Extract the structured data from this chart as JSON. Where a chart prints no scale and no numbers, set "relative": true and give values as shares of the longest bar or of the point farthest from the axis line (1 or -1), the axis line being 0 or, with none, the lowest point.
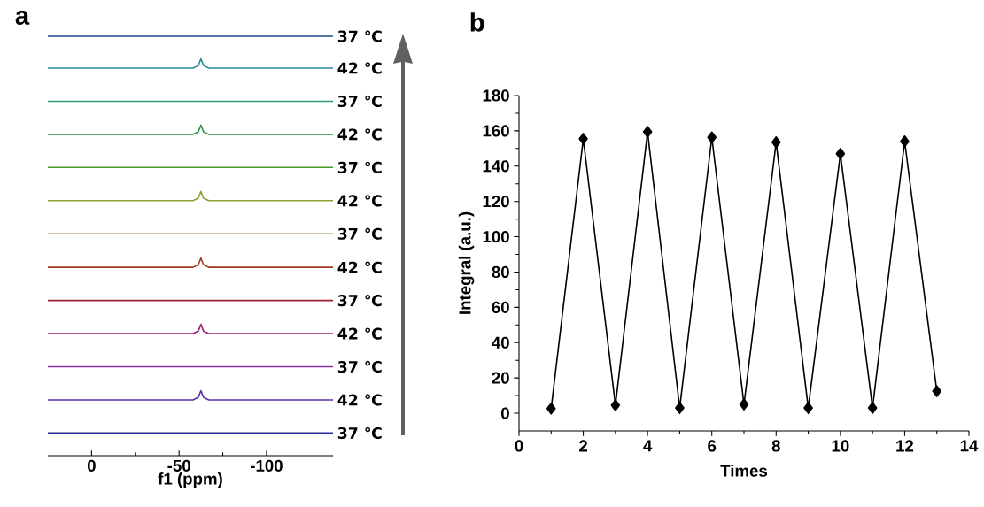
{
  "chart_data": [
    {
      "type": "line",
      "title": "a",
      "xlabel": "f1 (ppm)",
      "relative": true,
      "xlim": [
        25,
        -138
      ],
      "xticks": [
        0,
        -50,
        -100
      ],
      "marker": "none",
      "line_style": "solid",
      "series": [
        {
          "name": "37 ℃",
          "color": "#1f4e8c",
          "x": [
            25,
            -138
          ],
          "values": [
            1.0,
            1.0
          ]
        },
        {
          "name": "42 ℃",
          "color": "#2a8a9a",
          "x": [
            25,
            -58,
            -61,
            -62.5,
            -64,
            -67,
            -138
          ],
          "values": [
            0.924,
            0.924,
            0.93,
            0.946,
            0.93,
            0.924,
            0.924
          ]
        },
        {
          "name": "37 ℃",
          "color": "#2a9a7a",
          "x": [
            25,
            -138
          ],
          "values": [
            0.845,
            0.845
          ]
        },
        {
          "name": "42 ℃",
          "color": "#2a9040",
          "x": [
            25,
            -58,
            -61,
            -62.5,
            -64,
            -67,
            -138
          ],
          "values": [
            0.766,
            0.766,
            0.772,
            0.788,
            0.772,
            0.766,
            0.766
          ]
        },
        {
          "name": "37 ℃",
          "color": "#4a9a2a",
          "x": [
            25,
            -138
          ],
          "values": [
            0.687,
            0.687
          ]
        },
        {
          "name": "42 ℃",
          "color": "#8aa030",
          "x": [
            25,
            -58,
            -61,
            -62.5,
            -64,
            -67,
            -138
          ],
          "values": [
            0.608,
            0.608,
            0.614,
            0.63,
            0.614,
            0.608,
            0.608
          ]
        },
        {
          "name": "37 ℃",
          "color": "#a08a30",
          "x": [
            25,
            -138
          ],
          "values": [
            0.529,
            0.529
          ]
        },
        {
          "name": "42 ℃",
          "color": "#9a3a20",
          "x": [
            25,
            -58,
            -61,
            -62.5,
            -64,
            -67,
            -138
          ],
          "values": [
            0.449,
            0.449,
            0.455,
            0.471,
            0.455,
            0.449,
            0.449
          ]
        },
        {
          "name": "37 ℃",
          "color": "#9a2030",
          "x": [
            25,
            -138
          ],
          "values": [
            0.37,
            0.37
          ]
        },
        {
          "name": "42 ℃",
          "color": "#9a2070",
          "x": [
            25,
            -58,
            -61,
            -62.5,
            -64,
            -67,
            -138
          ],
          "values": [
            0.291,
            0.291,
            0.297,
            0.313,
            0.297,
            0.291,
            0.291
          ]
        },
        {
          "name": "37 ℃",
          "color": "#8a30a0",
          "x": [
            25,
            -138
          ],
          "values": [
            0.212,
            0.212
          ]
        },
        {
          "name": "42 ℃",
          "color": "#5a30a0",
          "x": [
            25,
            -58,
            -61,
            -62.5,
            -64,
            -67,
            -138
          ],
          "values": [
            0.133,
            0.133,
            0.139,
            0.155,
            0.139,
            0.133,
            0.133
          ]
        },
        {
          "name": "37 ℃",
          "color": "#2a2a9a",
          "x": [
            25,
            -138
          ],
          "values": [
            0.054,
            0.054
          ]
        }
      ]
    },
    {
      "type": "line",
      "title": "b",
      "xlabel": "Times",
      "ylabel": "Integral (a.u.)",
      "xlim": [
        0,
        14
      ],
      "xticks": [
        0,
        2,
        4,
        6,
        8,
        10,
        12,
        14
      ],
      "ylim": [
        -10,
        180
      ],
      "yticks": [
        0,
        20,
        40,
        60,
        80,
        100,
        120,
        140,
        160,
        180
      ],
      "marker": "diamond",
      "line_style": "solid",
      "series": [
        {
          "color": "#000000",
          "x": [
            1,
            2,
            3,
            4,
            5,
            6,
            7,
            8,
            9,
            10,
            11,
            12,
            13
          ],
          "values": [
            2.6,
            155.5,
            4.5,
            159.4,
            3,
            156.3,
            5,
            153.5,
            3,
            147,
            3,
            154,
            12.5
          ]
        }
      ]
    }
  ]
}
